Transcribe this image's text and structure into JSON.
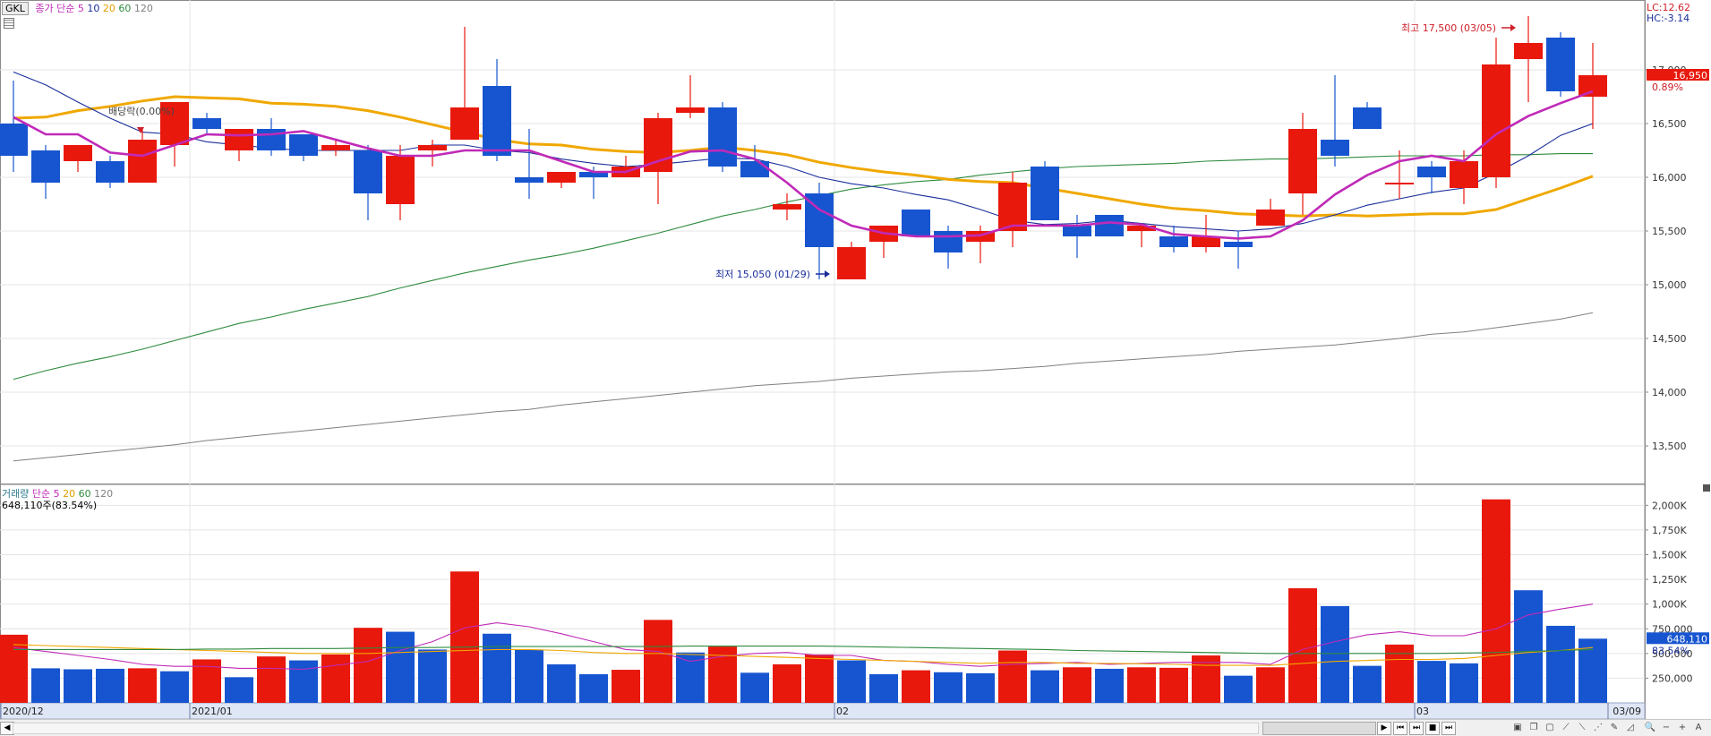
{
  "price_panel": {
    "ticker_tag": "GKL",
    "legend_title": "종가 단순",
    "ma_periods": [
      "5",
      "10",
      "20",
      "60",
      "120"
    ],
    "ma_colors": [
      "#c02ab8",
      "#1a2e9a",
      "#f0a800",
      "#2e8b3e",
      "#808080"
    ],
    "lc_label": "LC:12.62",
    "hc_label": "HC:-3.14",
    "current_price": "16,950",
    "current_change": "0.89%",
    "high_annotation": "최고 17,500 (03/05)",
    "low_annotation": "최저 15,050 (01/29)",
    "dividend_annotation": "배당락(0.00%)"
  },
  "volume_panel": {
    "legend_title": "거래량",
    "legend_sub": "단순",
    "ma_periods": [
      "5",
      "20",
      "60",
      "120"
    ],
    "current_volume_text": "648,110주(83.54%)",
    "current_volume": "648,110",
    "current_ratio": "83.54%"
  },
  "colors": {
    "up": "#e8180c",
    "down": "#1755d0",
    "grid": "#e4e4e4",
    "axis_band": "#dfe6f5"
  },
  "toolbar": {
    "zoom_in": "+",
    "zoom_out": "−",
    "font": "A",
    "search": "🔍"
  },
  "chart_data": [
    {
      "type": "candlestick",
      "title": "",
      "y_ticks": [
        13500,
        14000,
        14500,
        15000,
        15500,
        16000,
        16500,
        17000
      ],
      "y_tick_labels": [
        "13,500",
        "14,000",
        "14,500",
        "15,000",
        "15,500",
        "16,000",
        "16,500",
        "17,000"
      ],
      "ylim": [
        13150,
        17550
      ],
      "x_tick_labels": [
        {
          "index": 0,
          "label": "2020/12"
        },
        {
          "index": 6,
          "label": "2021/01"
        },
        {
          "index": 26,
          "label": "02"
        },
        {
          "index": 44,
          "label": "03"
        },
        {
          "index": 50,
          "label": "03/09"
        }
      ],
      "candles": [
        {
          "o": 16500,
          "h": 16900,
          "l": 16050,
          "c": 16200
        },
        {
          "o": 16250,
          "h": 16300,
          "l": 15800,
          "c": 15950
        },
        {
          "o": 16150,
          "h": 16300,
          "l": 16050,
          "c": 16300
        },
        {
          "o": 16150,
          "h": 16200,
          "l": 15900,
          "c": 15950
        },
        {
          "o": 15950,
          "h": 16450,
          "l": 15950,
          "c": 16350
        },
        {
          "o": 16300,
          "h": 16700,
          "l": 16100,
          "c": 16700
        },
        {
          "o": 16550,
          "h": 16600,
          "l": 16400,
          "c": 16450
        },
        {
          "o": 16250,
          "h": 16450,
          "l": 16150,
          "c": 16450
        },
        {
          "o": 16450,
          "h": 16550,
          "l": 16200,
          "c": 16250
        },
        {
          "o": 16400,
          "h": 16400,
          "l": 16150,
          "c": 16200
        },
        {
          "o": 16250,
          "h": 16350,
          "l": 16200,
          "c": 16300
        },
        {
          "o": 16250,
          "h": 16300,
          "l": 15600,
          "c": 15850
        },
        {
          "o": 15750,
          "h": 16300,
          "l": 15600,
          "c": 16200
        },
        {
          "o": 16250,
          "h": 16350,
          "l": 16100,
          "c": 16300
        },
        {
          "o": 16350,
          "h": 17400,
          "l": 16350,
          "c": 16650
        },
        {
          "o": 16850,
          "h": 17100,
          "l": 16150,
          "c": 16200
        },
        {
          "o": 16000,
          "h": 16450,
          "l": 15800,
          "c": 15950
        },
        {
          "o": 15950,
          "h": 16050,
          "l": 15900,
          "c": 16050
        },
        {
          "o": 16050,
          "h": 16100,
          "l": 15800,
          "c": 16000
        },
        {
          "o": 16000,
          "h": 16200,
          "l": 16000,
          "c": 16100
        },
        {
          "o": 16050,
          "h": 16600,
          "l": 15750,
          "c": 16550
        },
        {
          "o": 16600,
          "h": 16950,
          "l": 16550,
          "c": 16650
        },
        {
          "o": 16650,
          "h": 16700,
          "l": 16050,
          "c": 16100
        },
        {
          "o": 16150,
          "h": 16300,
          "l": 16000,
          "c": 16000
        },
        {
          "o": 15700,
          "h": 15850,
          "l": 15600,
          "c": 15750
        },
        {
          "o": 15850,
          "h": 15950,
          "l": 15050,
          "c": 15350
        },
        {
          "o": 15050,
          "h": 15400,
          "l": 15050,
          "c": 15350
        },
        {
          "o": 15400,
          "h": 15550,
          "l": 15250,
          "c": 15550
        },
        {
          "o": 15700,
          "h": 15700,
          "l": 15450,
          "c": 15450
        },
        {
          "o": 15500,
          "h": 15550,
          "l": 15150,
          "c": 15300
        },
        {
          "o": 15400,
          "h": 15550,
          "l": 15200,
          "c": 15500
        },
        {
          "o": 15500,
          "h": 16050,
          "l": 15350,
          "c": 15950
        },
        {
          "o": 16100,
          "h": 16150,
          "l": 15600,
          "c": 15600
        },
        {
          "o": 15550,
          "h": 15650,
          "l": 15250,
          "c": 15450
        },
        {
          "o": 15650,
          "h": 15650,
          "l": 15450,
          "c": 15450
        },
        {
          "o": 15500,
          "h": 15550,
          "l": 15350,
          "c": 15550
        },
        {
          "o": 15450,
          "h": 15550,
          "l": 15300,
          "c": 15350
        },
        {
          "o": 15350,
          "h": 15650,
          "l": 15300,
          "c": 15450
        },
        {
          "o": 15400,
          "h": 15500,
          "l": 15150,
          "c": 15350
        },
        {
          "o": 15550,
          "h": 15800,
          "l": 15550,
          "c": 15700
        },
        {
          "o": 15850,
          "h": 16600,
          "l": 15650,
          "c": 16450
        },
        {
          "o": 16350,
          "h": 16950,
          "l": 16100,
          "c": 16200
        },
        {
          "o": 16650,
          "h": 16700,
          "l": 16450,
          "c": 16450
        },
        {
          "o": 15950,
          "h": 16250,
          "l": 15800,
          "c": 15950
        },
        {
          "o": 16100,
          "h": 16150,
          "l": 15850,
          "c": 16000
        },
        {
          "o": 15900,
          "h": 16250,
          "l": 15750,
          "c": 16150
        },
        {
          "o": 16000,
          "h": 17300,
          "l": 15900,
          "c": 17050
        },
        {
          "o": 17100,
          "h": 17500,
          "l": 16700,
          "c": 17250
        },
        {
          "o": 17300,
          "h": 17350,
          "l": 16750,
          "c": 16800
        },
        {
          "o": 16750,
          "h": 17250,
          "l": 16450,
          "c": 16950
        }
      ],
      "series": [
        {
          "name": "5",
          "color": "#c02ab8",
          "values": [
            16560,
            16400,
            16400,
            16230,
            16200,
            16300,
            16400,
            16390,
            16400,
            16430,
            16350,
            16270,
            16200,
            16200,
            16250,
            16250,
            16250,
            16150,
            16050,
            16050,
            16150,
            16240,
            16250,
            16170,
            15950,
            15700,
            15550,
            15480,
            15450,
            15450,
            15460,
            15550,
            15550,
            15550,
            15580,
            15560,
            15470,
            15450,
            15430,
            15450,
            15600,
            15840,
            16020,
            16150,
            16200,
            16150,
            16400,
            16570,
            16690,
            16800
          ]
        },
        {
          "name": "10",
          "color": "#1a2e9a",
          "values": [
            16980,
            16860,
            16700,
            16550,
            16420,
            16400,
            16330,
            16300,
            16270,
            16250,
            16250,
            16250,
            16250,
            16300,
            16300,
            16250,
            16230,
            16170,
            16130,
            16100,
            16120,
            16150,
            16180,
            16170,
            16100,
            16000,
            15940,
            15900,
            15840,
            15790,
            15700,
            15600,
            15560,
            15570,
            15600,
            15570,
            15540,
            15520,
            15500,
            15520,
            15570,
            15650,
            15740,
            15800,
            15860,
            15900,
            16040,
            16200,
            16390,
            16500
          ]
        },
        {
          "name": "20",
          "color": "#f0a800",
          "values": [
            16550,
            16560,
            16620,
            16660,
            16710,
            16750,
            16740,
            16730,
            16690,
            16680,
            16660,
            16620,
            16560,
            16490,
            16420,
            16350,
            16310,
            16300,
            16260,
            16240,
            16230,
            16250,
            16280,
            16250,
            16210,
            16140,
            16090,
            16050,
            16020,
            15980,
            15960,
            15950,
            15900,
            15850,
            15800,
            15750,
            15710,
            15690,
            15660,
            15650,
            15640,
            15650,
            15640,
            15650,
            15660,
            15660,
            15700,
            15800,
            15900,
            16010
          ]
        },
        {
          "name": "60",
          "color": "#2e8b3e",
          "values": [
            14120,
            14200,
            14270,
            14330,
            14400,
            14480,
            14560,
            14640,
            14700,
            14770,
            14830,
            14890,
            14970,
            15040,
            15110,
            15170,
            15230,
            15280,
            15340,
            15410,
            15480,
            15560,
            15640,
            15700,
            15770,
            15830,
            15890,
            15930,
            15960,
            15980,
            16020,
            16050,
            16080,
            16100,
            16110,
            16120,
            16130,
            16150,
            16160,
            16170,
            16170,
            16180,
            16190,
            16200,
            16200,
            16200,
            16210,
            16210,
            16220,
            16220
          ]
        },
        {
          "name": "120",
          "color": "#808080",
          "values": [
            13360,
            13390,
            13420,
            13450,
            13480,
            13510,
            13550,
            13580,
            13610,
            13640,
            13670,
            13700,
            13730,
            13760,
            13790,
            13820,
            13840,
            13880,
            13910,
            13940,
            13970,
            14000,
            14030,
            14060,
            14080,
            14100,
            14130,
            14150,
            14170,
            14190,
            14200,
            14220,
            14240,
            14270,
            14290,
            14310,
            14330,
            14350,
            14380,
            14400,
            14420,
            14440,
            14470,
            14500,
            14540,
            14560,
            14600,
            14640,
            14680,
            14740
          ]
        }
      ]
    },
    {
      "type": "bar",
      "title": "",
      "y_ticks": [
        250000,
        500000,
        750000,
        1000000,
        1250000,
        1500000,
        1750000,
        2000000
      ],
      "y_tick_labels": [
        "250,000",
        "500,000",
        "750,000",
        "1,000K",
        "1,250K",
        "1,500K",
        "1,750K",
        "2,000K"
      ],
      "ylim": [
        0,
        2130000
      ],
      "values": [
        690000,
        350000,
        340000,
        345000,
        350000,
        320000,
        440000,
        260000,
        470000,
        430000,
        490000,
        760000,
        720000,
        540000,
        1330000,
        700000,
        540000,
        390000,
        290000,
        335000,
        840000,
        510000,
        570000,
        305000,
        390000,
        490000,
        430000,
        290000,
        330000,
        310000,
        300000,
        530000,
        330000,
        360000,
        345000,
        360000,
        355000,
        480000,
        275000,
        360000,
        1160000,
        980000,
        375000,
        590000,
        425000,
        400000,
        2060000,
        1140000,
        780000,
        650000
      ],
      "up": [
        true,
        false,
        false,
        false,
        true,
        false,
        true,
        false,
        true,
        false,
        true,
        true,
        false,
        false,
        true,
        false,
        false,
        false,
        false,
        true,
        true,
        false,
        true,
        false,
        true,
        true,
        false,
        false,
        true,
        false,
        false,
        true,
        false,
        true,
        false,
        true,
        true,
        true,
        false,
        true,
        true,
        false,
        false,
        true,
        false,
        false,
        true,
        false,
        false,
        false
      ],
      "series": [
        {
          "name": "5",
          "color": "#c02ab8",
          "values": [
            560000,
            520000,
            480000,
            440000,
            390000,
            370000,
            370000,
            350000,
            350000,
            340000,
            380000,
            420000,
            530000,
            620000,
            760000,
            810000,
            770000,
            700000,
            620000,
            540000,
            520000,
            420000,
            470000,
            500000,
            510000,
            480000,
            480000,
            430000,
            420000,
            390000,
            370000,
            390000,
            400000,
            410000,
            390000,
            400000,
            410000,
            410000,
            410000,
            390000,
            540000,
            620000,
            690000,
            720000,
            680000,
            680000,
            750000,
            890000,
            950000,
            1000000
          ]
        },
        {
          "name": "20",
          "color": "#f0a800",
          "values": [
            590000,
            580000,
            570000,
            560000,
            550000,
            540000,
            530000,
            520000,
            510000,
            500000,
            500000,
            500000,
            510000,
            520000,
            530000,
            540000,
            540000,
            530000,
            510000,
            500000,
            500000,
            490000,
            480000,
            470000,
            460000,
            450000,
            440000,
            430000,
            420000,
            410000,
            400000,
            410000,
            410000,
            400000,
            400000,
            395000,
            390000,
            380000,
            380000,
            380000,
            400000,
            420000,
            430000,
            440000,
            440000,
            450000,
            480000,
            510000,
            530000,
            560000
          ]
        },
        {
          "name": "60",
          "color": "#2e8b3e",
          "values": [
            540000,
            540000,
            540000,
            540000,
            540000,
            540000,
            545000,
            545000,
            550000,
            550000,
            550000,
            555000,
            560000,
            560000,
            565000,
            570000,
            570000,
            570000,
            570000,
            570000,
            570000,
            575000,
            575000,
            575000,
            575000,
            575000,
            570000,
            565000,
            560000,
            555000,
            550000,
            545000,
            540000,
            530000,
            525000,
            520000,
            515000,
            510000,
            505000,
            500000,
            500000,
            500000,
            500000,
            500000,
            500000,
            505000,
            510000,
            520000,
            530000,
            540000
          ]
        }
      ]
    }
  ]
}
